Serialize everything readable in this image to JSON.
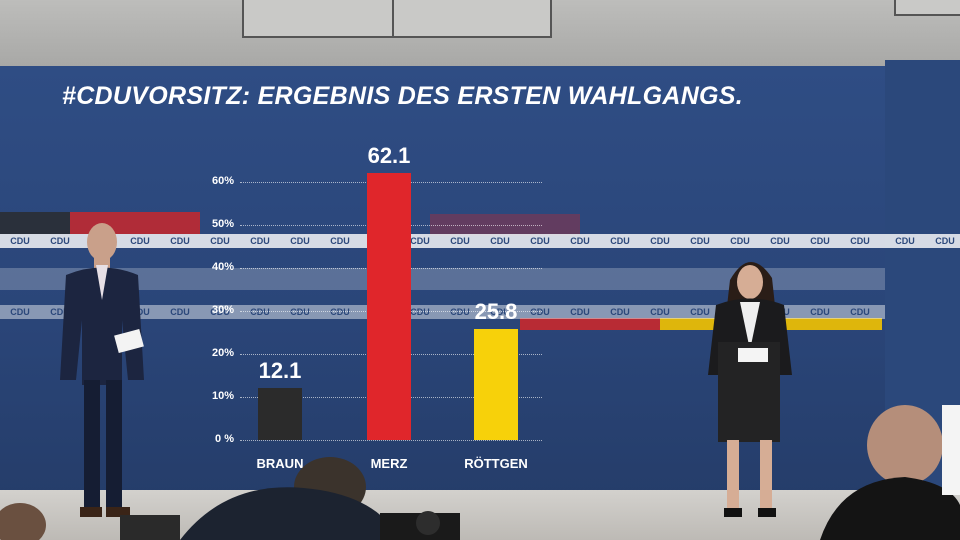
{
  "screen": {
    "title": "#CDUVORSITZ: ERGEBNIS DES ERSTEN WAHLGANGS.",
    "logo_text": "CDU"
  },
  "colors": {
    "background_blue": "#2b487b",
    "merz_red": "#e0262b",
    "braun_black": "#2b2b2b",
    "roettgen_yellow": "#f7d10a",
    "text_white": "#ffffff"
  },
  "chart_data": {
    "type": "bar",
    "categories": [
      "BRAUN",
      "MERZ",
      "RÖTTGEN"
    ],
    "values": [
      12.1,
      62.1,
      25.8
    ],
    "value_labels": [
      "12.1",
      "62.1",
      "25.8"
    ],
    "colors": [
      "#2b2b2b",
      "#e0262b",
      "#f7d10a"
    ],
    "yticks": [
      "0 %",
      "10%",
      "20%",
      "30%",
      "40%",
      "50%",
      "60%"
    ],
    "ylim": [
      0,
      60
    ],
    "grid": true
  }
}
